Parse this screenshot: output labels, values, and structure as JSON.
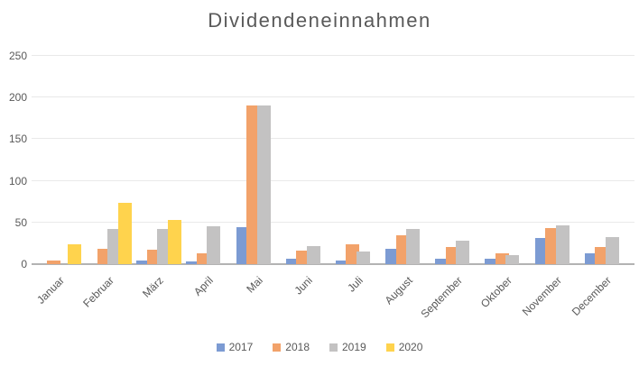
{
  "title": "Dividendeneinnahmen",
  "colors": {
    "text": "#595959",
    "gridline": "#e9e9e9",
    "axis_line": "#b3b3b3",
    "background": "#ffffff",
    "series_2017": "#7c9bd3",
    "series_2018": "#f2a26a",
    "series_2019": "#c3c2c2",
    "series_2020": "#ffd34d"
  },
  "chart_data": {
    "type": "bar",
    "title": "Dividendeneinnahmen",
    "categories": [
      "Januar",
      "Februar",
      "März",
      "April",
      "Mai",
      "Juni",
      "Juli",
      "August",
      "September",
      "Oktober",
      "November",
      "December"
    ],
    "series": [
      {
        "name": "2017",
        "color": "#7c9bd3",
        "values": [
          0,
          0,
          4,
          3,
          44,
          6,
          4,
          18,
          7,
          6,
          31,
          13
        ]
      },
      {
        "name": "2018",
        "color": "#f2a26a",
        "values": [
          4,
          18,
          17,
          13,
          190,
          16,
          24,
          35,
          21,
          13,
          43,
          21
        ]
      },
      {
        "name": "2019",
        "color": "#c3c2c2",
        "values": [
          0,
          42,
          42,
          45,
          191,
          22,
          15,
          42,
          28,
          11,
          47,
          32
        ]
      },
      {
        "name": "2020",
        "color": "#ffd34d",
        "values": [
          24,
          74,
          53,
          0,
          0,
          0,
          0,
          0,
          0,
          0,
          0,
          0
        ]
      }
    ],
    "xlabel": "",
    "ylabel": "",
    "ylim": [
      0,
      250
    ],
    "ytick_interval": 50,
    "yticks": [
      "0",
      "50",
      "100",
      "150",
      "200",
      "250"
    ],
    "grid": "horizontal",
    "legend_position": "bottom"
  }
}
